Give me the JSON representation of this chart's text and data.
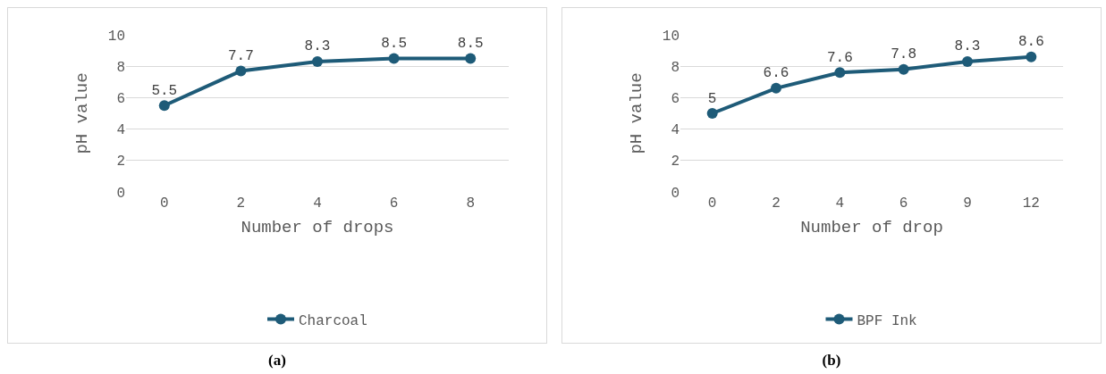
{
  "chart_data": [
    {
      "type": "line",
      "xlabel": "Number of drops",
      "ylabel": "pH value",
      "categories": [
        "0",
        "2",
        "4",
        "6",
        "8"
      ],
      "series": [
        {
          "name": "Charcoal",
          "color": "#1e5b78",
          "values": [
            5.5,
            7.7,
            8.3,
            8.5,
            8.5
          ]
        }
      ],
      "ylim": [
        0,
        10
      ],
      "yticks": [
        0,
        2,
        4,
        6,
        8,
        10
      ],
      "grid": "y",
      "legend": "bottom",
      "marker": "circle",
      "line_style": "solid",
      "data_labels": true,
      "annotations": [
        "(a)"
      ]
    },
    {
      "type": "line",
      "xlabel": "Number of drop",
      "ylabel": "pH value",
      "categories": [
        "0",
        "2",
        "4",
        "6",
        "9",
        "12"
      ],
      "series": [
        {
          "name": "BPF Ink",
          "color": "#1e5b78",
          "values": [
            5,
            6.6,
            7.6,
            7.8,
            8.3,
            8.6
          ]
        }
      ],
      "ylim": [
        0,
        10
      ],
      "yticks": [
        0,
        2,
        4,
        6,
        8,
        10
      ],
      "grid": "y",
      "legend": "bottom",
      "marker": "circle",
      "line_style": "solid",
      "data_labels": true,
      "annotations": [
        "(b)"
      ]
    }
  ]
}
